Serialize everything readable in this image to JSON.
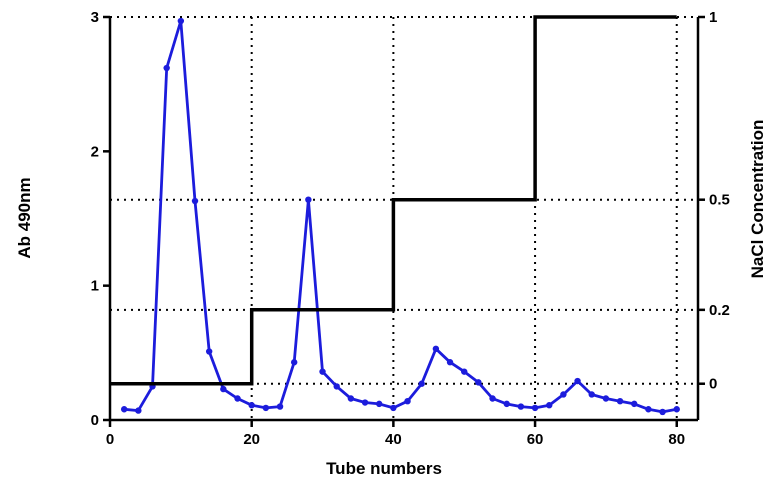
{
  "chart_data": {
    "type": "line",
    "title": "",
    "xlabel": "Tube numbers",
    "ylabel": "Ab 490nm",
    "y2label": "NaCl Concentration",
    "xlim": [
      0,
      83
    ],
    "ylim": [
      0,
      3
    ],
    "x_ticks": [
      0,
      20,
      40,
      60,
      80
    ],
    "y_ticks": [
      0,
      1,
      2,
      3
    ],
    "y2_ticks": [
      {
        "label": "0",
        "y": 0.27
      },
      {
        "label": "0.2",
        "y": 0.82
      },
      {
        "label": "0.5",
        "y": 1.64
      },
      {
        "label": "1",
        "y": 3.0
      }
    ],
    "grid": "dotted at NaCl levels and x ticks",
    "series": [
      {
        "type": "line-with-markers",
        "color": "#1c1cdc",
        "x": [
          2,
          4,
          6,
          8,
          10,
          12,
          14,
          16,
          18,
          20,
          22,
          24,
          26,
          28,
          30,
          32,
          34,
          36,
          38,
          40,
          42,
          44,
          46,
          48,
          50,
          52,
          54,
          56,
          58,
          60,
          62,
          64,
          66,
          68,
          70,
          72,
          74,
          76,
          78,
          80
        ],
        "y": [
          0.08,
          0.07,
          0.25,
          2.62,
          2.97,
          1.63,
          0.51,
          0.23,
          0.16,
          0.11,
          0.09,
          0.1,
          0.43,
          1.64,
          0.36,
          0.25,
          0.16,
          0.13,
          0.12,
          0.09,
          0.14,
          0.27,
          0.53,
          0.43,
          0.36,
          0.28,
          0.16,
          0.12,
          0.1,
          0.09,
          0.11,
          0.19,
          0.29,
          0.19,
          0.16,
          0.14,
          0.12,
          0.08,
          0.06,
          0.08
        ]
      },
      {
        "type": "step",
        "color": "#000000",
        "x": [
          0,
          20,
          20,
          40,
          40,
          60,
          60,
          80
        ],
        "y": [
          0.27,
          0.27,
          0.82,
          0.82,
          1.64,
          1.64,
          3.0,
          3.0
        ]
      }
    ]
  }
}
